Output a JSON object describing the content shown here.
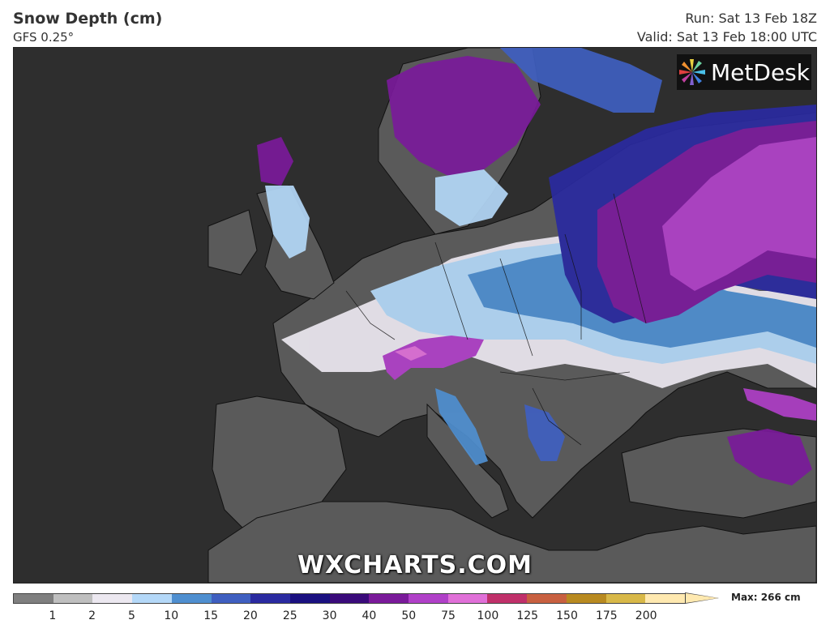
{
  "header": {
    "title": "Snow Depth (cm)",
    "model": "GFS 0.25°",
    "run": "Run: Sat 13 Feb 18Z",
    "valid": "Valid: Sat 13 Feb 18:00 UTC"
  },
  "branding": {
    "logo_text": "MetDesk",
    "watermark": "WXCHARTS.COM"
  },
  "legend": {
    "max_label": "Max: 266 cm",
    "ticks": [
      "1",
      "2",
      "5",
      "10",
      "15",
      "20",
      "25",
      "30",
      "40",
      "50",
      "75",
      "100",
      "125",
      "150",
      "175",
      "200"
    ],
    "colors": [
      "#7f7f7f",
      "#bfbfbf",
      "#ece8f0",
      "#b4d8f8",
      "#4f8fd0",
      "#3f5fc0",
      "#2a2aa0",
      "#1a1080",
      "#3a0a7a",
      "#7a1a9a",
      "#b040c8",
      "#e070d8",
      "#c0306a",
      "#c86040",
      "#b88a20",
      "#d8b848",
      "#ffe9b0"
    ]
  },
  "colors": {
    "sea": "#2e2e2e",
    "land": "#5a5a5a"
  }
}
